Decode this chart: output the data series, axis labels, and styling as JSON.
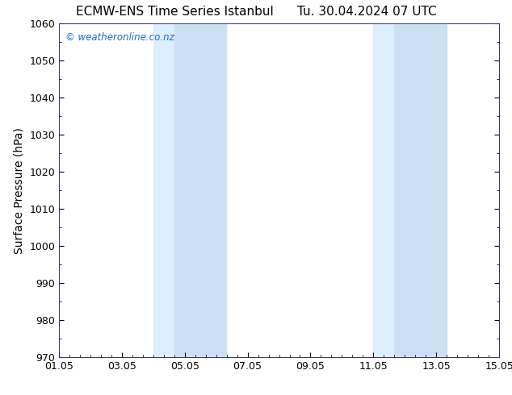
{
  "title_left": "ECMW-ENS Time Series Istanbul",
  "title_right": "Tu. 30.04.2024 07 UTC",
  "ylabel": "Surface Pressure (hPa)",
  "ylim": [
    970,
    1060
  ],
  "yticks": [
    970,
    980,
    990,
    1000,
    1010,
    1020,
    1030,
    1040,
    1050,
    1060
  ],
  "xlim_start": 0,
  "xlim_end": 14,
  "xtick_labels": [
    "01.05",
    "03.05",
    "05.05",
    "07.05",
    "09.05",
    "11.05",
    "13.05",
    "15.05"
  ],
  "xtick_positions": [
    0,
    2,
    4,
    6,
    8,
    10,
    12,
    14
  ],
  "shaded_bands": [
    {
      "x_start": 3.0,
      "x_end": 3.67
    },
    {
      "x_start": 3.67,
      "x_end": 5.33
    },
    {
      "x_start": 10.0,
      "x_end": 10.67
    },
    {
      "x_start": 10.67,
      "x_end": 12.33
    }
  ],
  "shade_colors": [
    "#ddeeff",
    "#cce0f5",
    "#ddeeff",
    "#cce0f5"
  ],
  "background_color": "#ffffff",
  "plot_bg_color": "#ffffff",
  "watermark_text": "© weatheronline.co.nz",
  "watermark_color": "#1a6bbf",
  "title_fontsize": 11,
  "label_fontsize": 10,
  "tick_fontsize": 9,
  "watermark_fontsize": 8.5
}
